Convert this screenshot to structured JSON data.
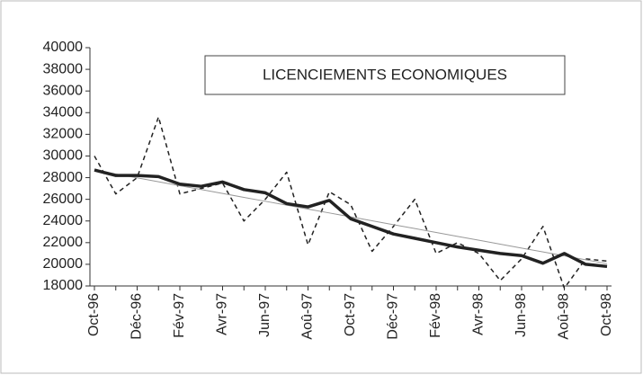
{
  "chart_data": {
    "type": "line",
    "title": "LICENCIEMENTS ECONOMIQUES",
    "categories": [
      "Oct-96",
      null,
      "Déc-96",
      null,
      "Fév-97",
      null,
      "Avr-97",
      null,
      "Jun-97",
      null,
      "Aoû-97",
      null,
      "Oct-97",
      null,
      "Déc-97",
      null,
      "Fév-98",
      null,
      "Avr-98",
      null,
      "Jun-98",
      null,
      "Aoû-98",
      null,
      "Oct-98"
    ],
    "series": [
      {
        "color": "#222222",
        "style": "dashed",
        "width": 1.5,
        "values": [
          30000,
          26500,
          28000,
          33600,
          26500,
          27000,
          27500,
          24000,
          26000,
          28500,
          21800,
          26700,
          25500,
          21200,
          23500,
          26000,
          21000,
          22000,
          21000,
          18500,
          20500,
          23500,
          17800,
          20500,
          20300
        ]
      },
      {
        "color": "#999999",
        "style": "solid",
        "width": 1,
        "values": [
          28700,
          28340,
          27980,
          27620,
          27260,
          26900,
          26540,
          26180,
          25820,
          25460,
          25100,
          24740,
          24380,
          24020,
          23660,
          23300,
          22940,
          22580,
          22220,
          21860,
          21500,
          21140,
          20780,
          20420,
          20060
        ]
      },
      {
        "color": "#222222",
        "style": "solid",
        "width": 3.5,
        "values": [
          28700,
          28200,
          28200,
          28100,
          27400,
          27200,
          27600,
          26900,
          26600,
          25600,
          25300,
          25900,
          24200,
          23500,
          22800,
          22400,
          22000,
          21600,
          21300,
          21000,
          20800,
          20100,
          21000,
          20000,
          19800
        ]
      }
    ],
    "ylim": [
      18000,
      40000
    ],
    "yticks": [
      18000,
      20000,
      22000,
      24000,
      26000,
      28000,
      30000,
      32000,
      34000,
      36000,
      38000,
      40000
    ]
  }
}
